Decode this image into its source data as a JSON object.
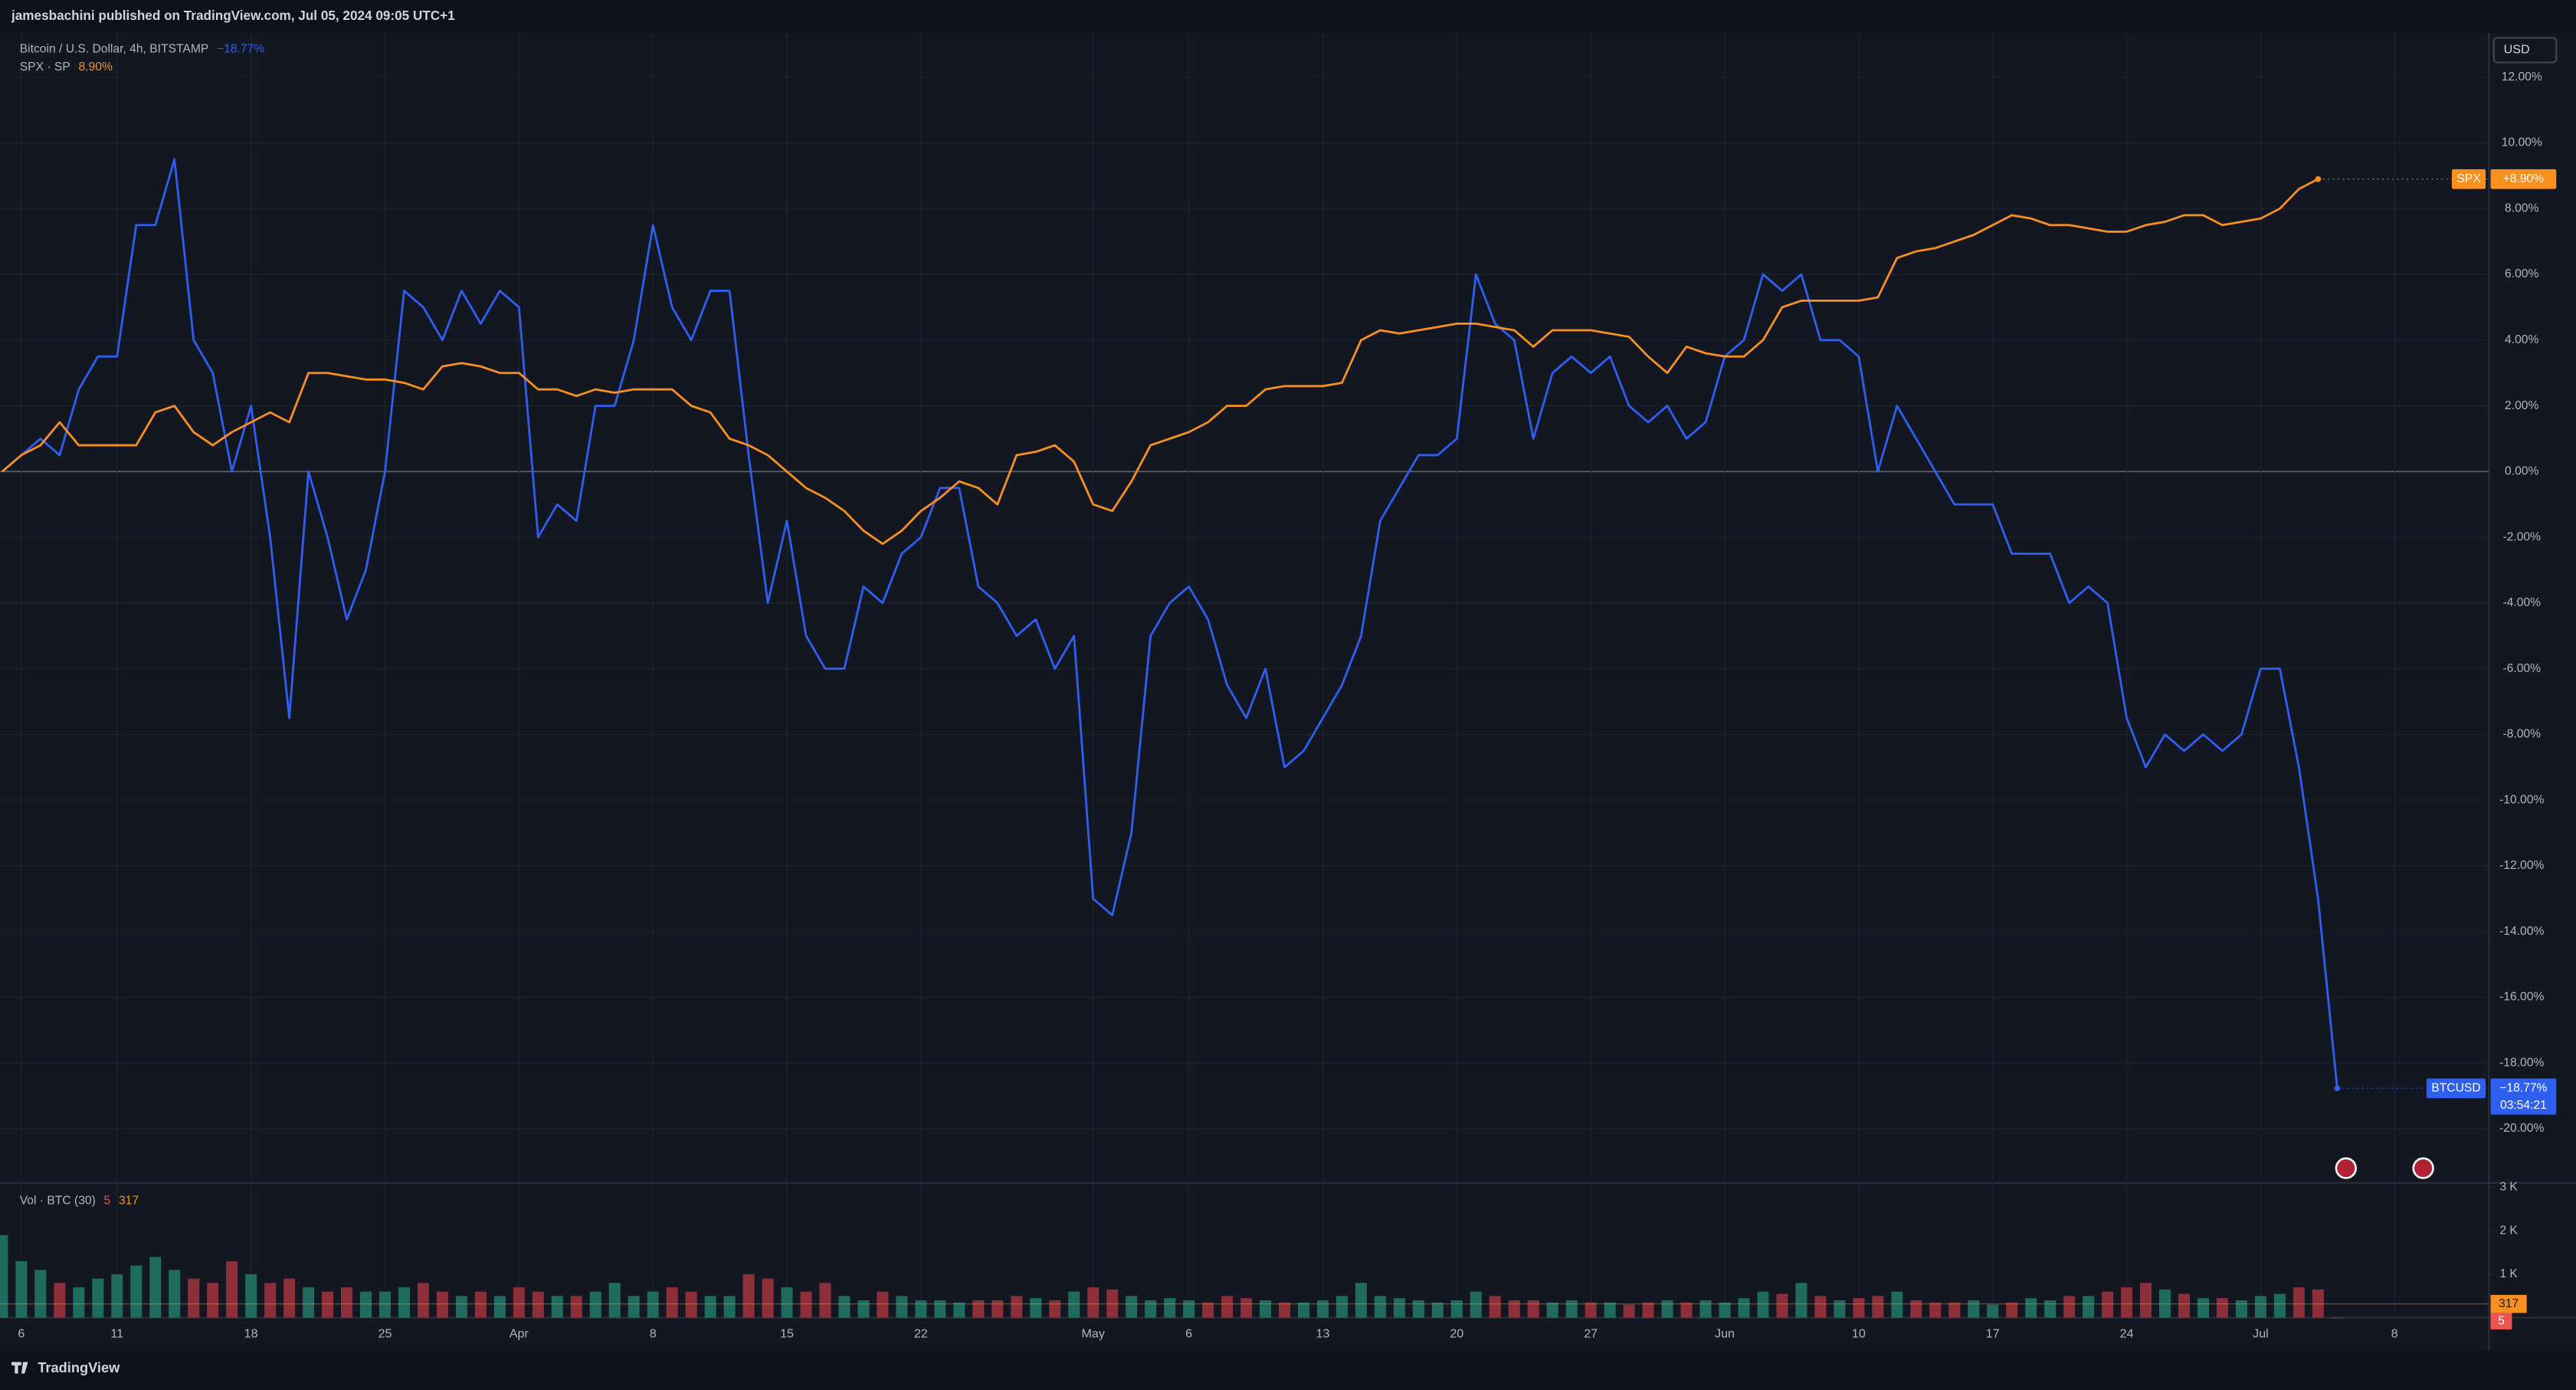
{
  "header": "jamesbachini published on TradingView.com, Jul 05, 2024 09:05 UTC+1",
  "footer_logo": "TradingView",
  "chart_data": [
    {
      "type": "line",
      "axis_unit": "USD",
      "categories": [
        null,
        "6",
        null,
        null,
        null,
        null,
        "11",
        null,
        null,
        null,
        null,
        null,
        null,
        "18",
        null,
        null,
        null,
        null,
        null,
        null,
        "25",
        null,
        null,
        null,
        null,
        null,
        null,
        "Apr",
        null,
        null,
        null,
        null,
        null,
        null,
        "8",
        null,
        null,
        null,
        null,
        null,
        null,
        "15",
        null,
        null,
        null,
        null,
        null,
        null,
        "22",
        null,
        null,
        null,
        null,
        null,
        null,
        null,
        null,
        "May",
        null,
        null,
        null,
        null,
        "6",
        null,
        null,
        null,
        null,
        null,
        null,
        "13",
        null,
        null,
        null,
        null,
        null,
        null,
        "20",
        null,
        null,
        null,
        null,
        null,
        null,
        "27",
        null,
        null,
        null,
        null,
        null,
        null,
        "Jun",
        null,
        null,
        null,
        null,
        null,
        null,
        "10",
        null,
        null,
        null,
        null,
        null,
        null,
        "17",
        null,
        null,
        null,
        null,
        null,
        null,
        "24",
        null,
        null,
        null,
        null,
        null,
        null,
        "Jul",
        null,
        null,
        null,
        null,
        null,
        null,
        "8",
        null,
        null,
        null,
        null
      ],
      "series": [
        {
          "name": "Bitcoin / U.S. Dollar, 4h, BITSTAMP",
          "short_name": "BTCUSD",
          "color": "#2f5ff0",
          "legend_label": "−18.77%",
          "price_label": "−18.77%",
          "countdown": "03:54:21",
          "values": [
            0.0,
            0.5,
            1.0,
            0.5,
            2.5,
            3.5,
            3.5,
            7.5,
            7.5,
            9.5,
            4,
            3,
            0,
            2,
            -2,
            -7.5,
            0,
            -2,
            -4.5,
            -3,
            0,
            5.5,
            5,
            4,
            5.5,
            4.5,
            5.5,
            5,
            -2,
            -1,
            -1.5,
            2,
            2,
            4,
            7.5,
            5,
            4,
            5.5,
            5.5,
            0.5,
            -4,
            -1.5,
            -5,
            -6,
            -6,
            -3.5,
            -4,
            -2.5,
            -2,
            -0.5,
            -0.5,
            -3.5,
            -4,
            -5,
            -4.5,
            -6,
            -5,
            -13,
            -13.5,
            -11,
            -5,
            -4,
            -3.5,
            -4.5,
            -6.5,
            -7.5,
            -6,
            -9,
            -8.5,
            -7.5,
            -6.5,
            -5,
            -1.5,
            -0.5,
            0.5,
            0.5,
            1,
            6,
            4.5,
            4,
            1,
            3,
            3.5,
            3,
            3.5,
            2,
            1.5,
            2,
            1,
            1.5,
            3.5,
            4,
            6,
            5.5,
            6,
            4,
            4,
            3.5,
            0,
            2,
            1,
            0,
            -1,
            -1,
            -1,
            -2.5,
            -2.5,
            -2.5,
            -4,
            -3.5,
            -4,
            -7.5,
            -9,
            -8,
            -8.5,
            -8,
            -8.5,
            -8,
            -6,
            -6,
            -9,
            -13,
            -18.77,
            null,
            null,
            null,
            null,
            null,
            null,
            null
          ]
        },
        {
          "name": "SPX · SP",
          "short_name": "SPX",
          "color": "#f7901e",
          "legend_label": "8.90%",
          "price_label": "+8.90%",
          "values": [
            0,
            0.5,
            0.8,
            1.5,
            0.8,
            0.8,
            0.8,
            0.8,
            1.8,
            2.0,
            1.2,
            0.8,
            1.2,
            1.5,
            1.8,
            1.5,
            3.0,
            3.0,
            2.9,
            2.8,
            2.8,
            2.7,
            2.5,
            3.2,
            3.3,
            3.2,
            3.0,
            3.0,
            2.5,
            2.5,
            2.3,
            2.5,
            2.4,
            2.5,
            2.5,
            2.5,
            2.0,
            1.8,
            1.0,
            0.8,
            0.5,
            0.0,
            -0.5,
            -0.8,
            -1.2,
            -1.8,
            -2.2,
            -1.8,
            -1.2,
            -0.8,
            -0.3,
            -0.5,
            -1.0,
            0.5,
            0.6,
            0.8,
            0.3,
            -1.0,
            -1.2,
            -0.3,
            0.8,
            1.0,
            1.2,
            1.5,
            2.0,
            2.0,
            2.5,
            2.6,
            2.6,
            2.6,
            2.7,
            4.0,
            4.3,
            4.2,
            4.3,
            4.4,
            4.5,
            4.5,
            4.4,
            4.3,
            3.8,
            4.3,
            4.3,
            4.3,
            4.2,
            4.1,
            3.5,
            3.0,
            3.8,
            3.6,
            3.5,
            3.5,
            4.0,
            5.0,
            5.2,
            5.2,
            5.2,
            5.2,
            5.3,
            6.5,
            6.7,
            6.8,
            7.0,
            7.2,
            7.5,
            7.8,
            7.7,
            7.5,
            7.5,
            7.4,
            7.3,
            7.3,
            7.5,
            7.6,
            7.8,
            7.8,
            7.5,
            7.6,
            7.7,
            8.0,
            8.6,
            8.9,
            null,
            null,
            null,
            null,
            null,
            null,
            null,
            null
          ]
        }
      ],
      "ylim": [
        -21.65,
        13.35
      ],
      "yticks": [
        {
          "value": 12,
          "label": "12.00%"
        },
        {
          "value": 10,
          "label": "10.00%"
        },
        {
          "value": 8,
          "label": "8.00%"
        },
        {
          "value": 6,
          "label": "6.00%"
        },
        {
          "value": 4,
          "label": "4.00%"
        },
        {
          "value": 2,
          "label": "2.00%"
        },
        {
          "value": 0,
          "label": "0.00%"
        },
        {
          "value": -2,
          "label": "-2.00%"
        },
        {
          "value": -4,
          "label": "-4.00%"
        },
        {
          "value": -6,
          "label": "-6.00%"
        },
        {
          "value": -8,
          "label": "-8.00%"
        },
        {
          "value": -10,
          "label": "-10.00%"
        },
        {
          "value": -12,
          "label": "-12.00%"
        },
        {
          "value": -14,
          "label": "-14.00%"
        },
        {
          "value": -16,
          "label": "-16.00%"
        },
        {
          "value": -18,
          "label": "-18.00%"
        },
        {
          "value": -20,
          "label": "-20.00%"
        }
      ],
      "grid": true
    },
    {
      "type": "bar",
      "title": "Vol · BTC (30)",
      "last_volume": 5,
      "ma": 317,
      "up_color": "#1f6b5e",
      "down_color": "#8c2f39",
      "ma_color": "#f7901e",
      "values": [
        1900,
        1300,
        1100,
        800,
        700,
        900,
        1000,
        1200,
        1400,
        1100,
        900,
        800,
        1300,
        1000,
        800,
        900,
        700,
        600,
        700,
        600,
        600,
        700,
        800,
        600,
        500,
        600,
        500,
        700,
        600,
        500,
        500,
        600,
        800,
        500,
        600,
        700,
        600,
        500,
        500,
        1000,
        900,
        700,
        600,
        800,
        500,
        400,
        600,
        500,
        400,
        400,
        350,
        400,
        400,
        500,
        450,
        400,
        600,
        700,
        650,
        500,
        400,
        450,
        400,
        350,
        500,
        450,
        400,
        350,
        350,
        400,
        500,
        800,
        500,
        450,
        400,
        350,
        400,
        600,
        500,
        400,
        400,
        350,
        400,
        350,
        350,
        300,
        350,
        400,
        350,
        400,
        350,
        450,
        600,
        550,
        800,
        500,
        400,
        450,
        500,
        600,
        400,
        350,
        350,
        400,
        300,
        350,
        450,
        400,
        500,
        500,
        600,
        700,
        800,
        650,
        550,
        450,
        450,
        400,
        500,
        550,
        700,
        650,
        5,
        null,
        null,
        null,
        null,
        null,
        null,
        null
      ],
      "ylim": [
        0,
        3100
      ],
      "yticks": [
        {
          "value": 3000,
          "label": "3 K"
        },
        {
          "value": 2000,
          "label": "2 K"
        },
        {
          "value": 1000,
          "label": "1 K"
        }
      ]
    }
  ]
}
